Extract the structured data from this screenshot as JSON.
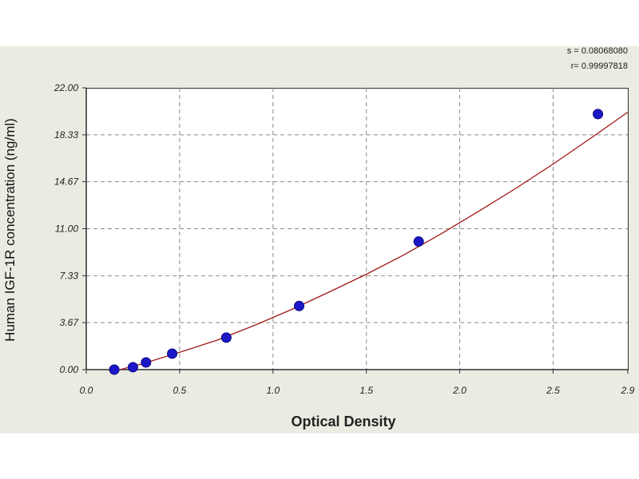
{
  "stats": {
    "s_text": "s = 0.08068080",
    "r_text": "r= 0.99997818"
  },
  "chart_data": {
    "type": "scatter",
    "title": "",
    "xlabel": "Optical Density",
    "ylabel": "Human  IGF-1R concentration (ng/ml)",
    "xlim": [
      0.0,
      2.9
    ],
    "ylim": [
      0.0,
      22.0
    ],
    "x_ticks": [
      "0.0",
      "0.5",
      "1.0",
      "1.5",
      "2.0",
      "2.5",
      "2.9"
    ],
    "y_ticks": [
      "0.00",
      "3.67",
      "7.33",
      "11.00",
      "14.67",
      "18.33",
      "22.00"
    ],
    "grid": true,
    "series": [
      {
        "name": "",
        "x": [
          0.15,
          0.25,
          0.32,
          0.46,
          0.75,
          1.14,
          1.78,
          2.74
        ],
        "y": [
          0.0,
          0.19,
          0.56,
          1.25,
          2.5,
          4.97,
          10.0,
          19.95
        ]
      }
    ],
    "fit_curve": {
      "x": [
        0.1,
        0.3,
        0.5,
        0.7,
        0.9,
        1.1,
        1.3,
        1.5,
        1.7,
        1.9,
        2.1,
        2.3,
        2.5,
        2.7,
        2.9
      ],
      "y": [
        -0.3,
        0.45,
        1.35,
        2.3,
        3.45,
        4.7,
        6.05,
        7.45,
        8.95,
        10.6,
        12.35,
        14.15,
        16.05,
        18.05,
        20.1
      ]
    },
    "colors": {
      "point": "#1c18c8",
      "curve": "#a11818",
      "grid": "#8a8a8a",
      "axis": "#2e2e2e"
    }
  }
}
